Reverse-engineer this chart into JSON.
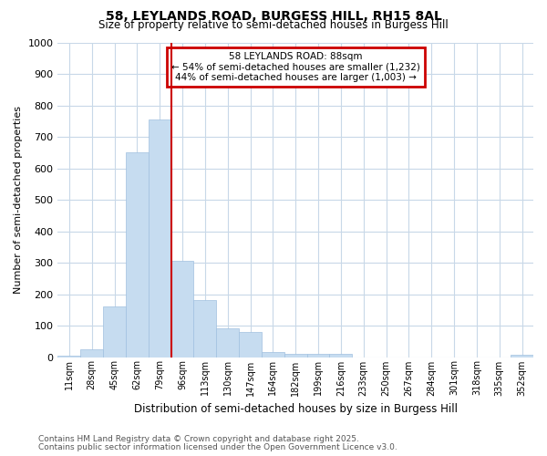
{
  "title1": "58, LEYLANDS ROAD, BURGESS HILL, RH15 8AL",
  "title2": "Size of property relative to semi-detached houses in Burgess Hill",
  "xlabel": "Distribution of semi-detached houses by size in Burgess Hill",
  "ylabel": "Number of semi-detached properties",
  "categories": [
    "11sqm",
    "28sqm",
    "45sqm",
    "62sqm",
    "79sqm",
    "96sqm",
    "113sqm",
    "130sqm",
    "147sqm",
    "164sqm",
    "182sqm",
    "199sqm",
    "216sqm",
    "233sqm",
    "250sqm",
    "267sqm",
    "284sqm",
    "301sqm",
    "318sqm",
    "335sqm",
    "352sqm"
  ],
  "values": [
    5,
    25,
    160,
    650,
    755,
    305,
    180,
    90,
    80,
    15,
    10,
    10,
    10,
    0,
    0,
    0,
    0,
    0,
    0,
    0,
    8
  ],
  "bar_color": "#c6dcf0",
  "bar_edge_color": "#a0c0e0",
  "highlight_line_color": "#cc0000",
  "highlight_index": 5,
  "annotation_title": "58 LEYLANDS ROAD: 88sqm",
  "annotation_line1": "← 54% of semi-detached houses are smaller (1,232)",
  "annotation_line2": "44% of semi-detached houses are larger (1,003) →",
  "annotation_box_color": "#ffffff",
  "annotation_box_edge": "#cc0000",
  "ylim": [
    0,
    1000
  ],
  "yticks": [
    0,
    100,
    200,
    300,
    400,
    500,
    600,
    700,
    800,
    900,
    1000
  ],
  "footnote1": "Contains HM Land Registry data © Crown copyright and database right 2025.",
  "footnote2": "Contains public sector information licensed under the Open Government Licence v3.0.",
  "bg_color": "#ffffff",
  "grid_color": "#c8d8e8",
  "title1_fontsize": 10,
  "title2_fontsize": 8.5
}
